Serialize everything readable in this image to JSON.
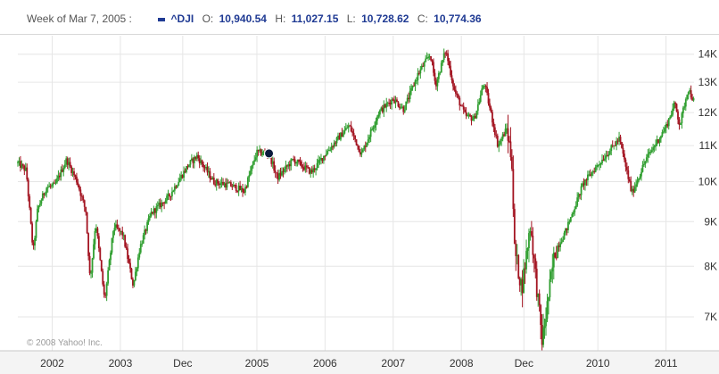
{
  "header": {
    "week_label": "Week of Mar 7, 2005 :",
    "symbol": "^DJI",
    "open_label": "O:",
    "open": "10,940.54",
    "high_label": "H:",
    "high": "11,027.15",
    "low_label": "L:",
    "low": "10,728.62",
    "close_label": "C:",
    "close": "10,774.36"
  },
  "copyright": "© 2008 Yahoo! Inc.",
  "colors": {
    "up": "#2f9e2f",
    "down": "#a31421",
    "marker": "#0a1a3c",
    "grid": "#e6e6e6",
    "accent": "#1f3a93"
  },
  "chart_data": {
    "type": "line",
    "subtype": "weekly-candlestick",
    "series_name": "^DJI",
    "scale": "log",
    "ylim": [
      6400,
      14700
    ],
    "xlim": [
      "2001-07-01",
      "2011-05-31"
    ],
    "y_ticks": [
      {
        "value": 14000,
        "label": "14K"
      },
      {
        "value": 13000,
        "label": "13K"
      },
      {
        "value": 12000,
        "label": "12K"
      },
      {
        "value": 11000,
        "label": "11K"
      },
      {
        "value": 10000,
        "label": "10K"
      },
      {
        "value": 9000,
        "label": "9K"
      },
      {
        "value": 8000,
        "label": "8K"
      },
      {
        "value": 7000,
        "label": "7K"
      }
    ],
    "x_ticks": [
      {
        "date": "2002-01-01",
        "label": "2002"
      },
      {
        "date": "2003-01-01",
        "label": "2003"
      },
      {
        "date": "2003-12-01",
        "label": "Dec"
      },
      {
        "date": "2005-01-01",
        "label": "2005"
      },
      {
        "date": "2006-01-01",
        "label": "2006"
      },
      {
        "date": "2007-01-01",
        "label": "2007"
      },
      {
        "date": "2008-01-01",
        "label": "2008"
      },
      {
        "date": "2008-12-01",
        "label": "Dec"
      },
      {
        "date": "2010-01-01",
        "label": "2010"
      },
      {
        "date": "2011-01-01",
        "label": "2011"
      }
    ],
    "grid": true,
    "highlight": {
      "date": "2005-03-07",
      "value": 10774.36
    },
    "close_path": [
      [
        "2001-07-01",
        10500
      ],
      [
        "2001-08-15",
        10300
      ],
      [
        "2001-09-21",
        8300
      ],
      [
        "2001-10-15",
        9300
      ],
      [
        "2001-11-30",
        9850
      ],
      [
        "2002-01-15",
        9900
      ],
      [
        "2002-03-19",
        10600
      ],
      [
        "2002-05-15",
        10000
      ],
      [
        "2002-06-30",
        9250
      ],
      [
        "2002-07-23",
        7700
      ],
      [
        "2002-08-22",
        9000
      ],
      [
        "2002-10-09",
        7300
      ],
      [
        "2002-11-27",
        8900
      ],
      [
        "2003-01-15",
        8700
      ],
      [
        "2003-03-11",
        7600
      ],
      [
        "2003-04-15",
        8400
      ],
      [
        "2003-06-15",
        9200
      ],
      [
        "2003-09-15",
        9600
      ],
      [
        "2003-12-31",
        10450
      ],
      [
        "2004-02-15",
        10700
      ],
      [
        "2004-05-15",
        10000
      ],
      [
        "2004-08-15",
        9900
      ],
      [
        "2004-10-25",
        9750
      ],
      [
        "2004-12-31",
        10800
      ],
      [
        "2005-03-07",
        10774
      ],
      [
        "2005-04-20",
        10100
      ],
      [
        "2005-07-15",
        10600
      ],
      [
        "2005-10-20",
        10250
      ],
      [
        "2005-12-31",
        10750
      ],
      [
        "2006-05-10",
        11600
      ],
      [
        "2006-07-15",
        10750
      ],
      [
        "2006-10-15",
        12000
      ],
      [
        "2006-12-31",
        12450
      ],
      [
        "2007-02-27",
        12100
      ],
      [
        "2007-05-15",
        13300
      ],
      [
        "2007-07-19",
        14000
      ],
      [
        "2007-08-16",
        12900
      ],
      [
        "2007-10-09",
        14150
      ],
      [
        "2007-11-26",
        12700
      ],
      [
        "2008-01-22",
        11900
      ],
      [
        "2008-03-10",
        11800
      ],
      [
        "2008-05-02",
        13000
      ],
      [
        "2008-07-15",
        11000
      ],
      [
        "2008-08-31",
        11500
      ],
      [
        "2008-09-30",
        10500
      ],
      [
        "2008-10-10",
        8400
      ],
      [
        "2008-11-20",
        7550
      ],
      [
        "2009-01-05",
        8950
      ],
      [
        "2009-03-09",
        6550
      ],
      [
        "2009-05-15",
        8300
      ],
      [
        "2009-07-15",
        8800
      ],
      [
        "2009-10-15",
        9950
      ],
      [
        "2009-12-31",
        10450
      ],
      [
        "2010-04-26",
        11200
      ],
      [
        "2010-07-02",
        9700
      ],
      [
        "2010-09-15",
        10600
      ],
      [
        "2010-12-31",
        11550
      ],
      [
        "2011-02-18",
        12300
      ],
      [
        "2011-03-16",
        11600
      ],
      [
        "2011-04-29",
        12800
      ],
      [
        "2011-05-31",
        12350
      ]
    ]
  }
}
